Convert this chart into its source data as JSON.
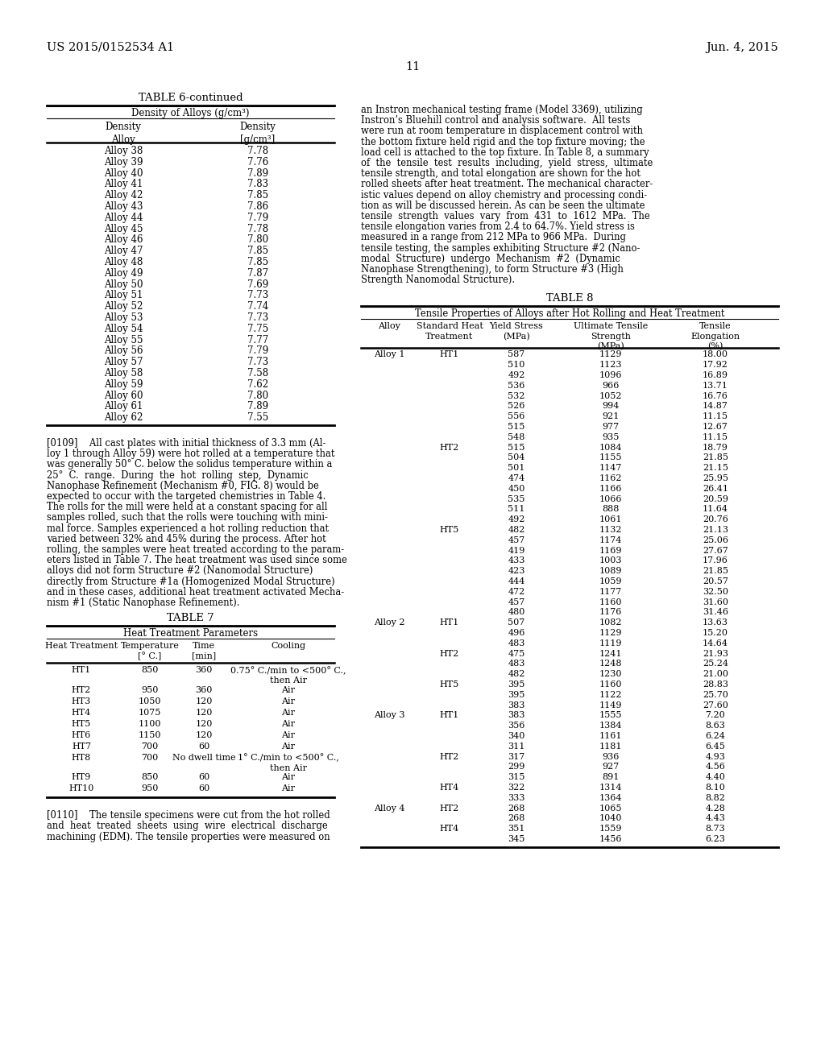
{
  "bg_color": "#ffffff",
  "header_left": "US 2015/0152534 A1",
  "header_right": "Jun. 4, 2015",
  "page_number": "11",
  "table6_title": "TABLE 6-continued",
  "table6_subtitle": "Density of Alloys (g/cm³)",
  "table6_data": [
    [
      "Alloy 38",
      "7.78"
    ],
    [
      "Alloy 39",
      "7.76"
    ],
    [
      "Alloy 40",
      "7.89"
    ],
    [
      "Alloy 41",
      "7.83"
    ],
    [
      "Alloy 42",
      "7.85"
    ],
    [
      "Alloy 43",
      "7.86"
    ],
    [
      "Alloy 44",
      "7.79"
    ],
    [
      "Alloy 45",
      "7.78"
    ],
    [
      "Alloy 46",
      "7.80"
    ],
    [
      "Alloy 47",
      "7.85"
    ],
    [
      "Alloy 48",
      "7.85"
    ],
    [
      "Alloy 49",
      "7.87"
    ],
    [
      "Alloy 50",
      "7.69"
    ],
    [
      "Alloy 51",
      "7.73"
    ],
    [
      "Alloy 52",
      "7.74"
    ],
    [
      "Alloy 53",
      "7.73"
    ],
    [
      "Alloy 54",
      "7.75"
    ],
    [
      "Alloy 55",
      "7.77"
    ],
    [
      "Alloy 56",
      "7.79"
    ],
    [
      "Alloy 57",
      "7.73"
    ],
    [
      "Alloy 58",
      "7.58"
    ],
    [
      "Alloy 59",
      "7.62"
    ],
    [
      "Alloy 60",
      "7.80"
    ],
    [
      "Alloy 61",
      "7.89"
    ],
    [
      "Alloy 62",
      "7.55"
    ]
  ],
  "para109_lines": [
    "[0109]    All cast plates with initial thickness of 3.3 mm (Al-",
    "loy 1 through Alloy 59) were hot rolled at a temperature that",
    "was generally 50° C. below the solidus temperature within a",
    "25°  C.  range.  During  the  hot  rolling  step,  Dynamic",
    "Nanophase Refinement (Mechanism #0, FIG. 8) would be",
    "expected to occur with the targeted chemistries in Table 4.",
    "The rolls for the mill were held at a constant spacing for all",
    "samples rolled, such that the rolls were touching with mini-",
    "mal force. Samples experienced a hot rolling reduction that",
    "varied between 32% and 45% during the process. After hot",
    "rolling, the samples were heat treated according to the param-",
    "eters listed in Table 7. The heat treatment was used since some",
    "alloys did not form Structure #2 (Nanomodal Structure)",
    "directly from Structure #1a (Homogenized Modal Structure)",
    "and in these cases, additional heat treatment activated Mecha-",
    "nism #1 (Static Nanophase Refinement)."
  ],
  "table7_title": "TABLE 7",
  "table7_subtitle": "Heat Treatment Parameters",
  "table7_data": [
    [
      "HT1",
      "850",
      "360",
      "0.75° C./min to <500° C.,",
      "then Air"
    ],
    [
      "HT2",
      "950",
      "360",
      "Air",
      ""
    ],
    [
      "HT3",
      "1050",
      "120",
      "Air",
      ""
    ],
    [
      "HT4",
      "1075",
      "120",
      "Air",
      ""
    ],
    [
      "HT5",
      "1100",
      "120",
      "Air",
      ""
    ],
    [
      "HT6",
      "1150",
      "120",
      "Air",
      ""
    ],
    [
      "HT7",
      "700",
      "60",
      "Air",
      ""
    ],
    [
      "HT8",
      "700",
      "No dwell time",
      "1° C./min to <500° C.,",
      "then Air"
    ],
    [
      "HT9",
      "850",
      "60",
      "Air",
      ""
    ],
    [
      "HT10",
      "950",
      "60",
      "Air",
      ""
    ]
  ],
  "para110_lines": [
    "[0110]    The tensile specimens were cut from the hot rolled",
    "and  heat  treated  sheets  using  wire  electrical  discharge",
    "machining (EDM). The tensile properties were measured on"
  ],
  "right_para_lines": [
    "an Instron mechanical testing frame (Model 3369), utilizing",
    "Instron’s Bluehill control and analysis software.  All tests",
    "were run at room temperature in displacement control with",
    "the bottom fixture held rigid and the top fixture moving; the",
    "load cell is attached to the top fixture. In Table 8, a summary",
    "of  the  tensile  test  results  including,  yield  stress,  ultimate",
    "tensile strength, and total elongation are shown for the hot",
    "rolled sheets after heat treatment. The mechanical character-",
    "istic values depend on alloy chemistry and processing condi-",
    "tion as will be discussed herein. As can be seen the ultimate",
    "tensile  strength  values  vary  from  431  to  1612  MPa.  The",
    "tensile elongation varies from 2.4 to 64.7%. Yield stress is",
    "measured in a range from 212 MPa to 966 MPa.  During",
    "tensile testing, the samples exhibiting Structure #2 (Nano-",
    "modal  Structure)  undergo  Mechanism  #2  (Dynamic",
    "Nanophase Strengthening), to form Structure #3 (High",
    "Strength Nanomodal Structure)."
  ],
  "table8_title": "TABLE 8",
  "table8_subtitle": "Tensile Properties of Alloys after Hot Rolling and Heat Treatment",
  "table8_data": [
    [
      "Alloy 1",
      "HT1",
      "587",
      "1129",
      "18.00"
    ],
    [
      "",
      "",
      "510",
      "1123",
      "17.92"
    ],
    [
      "",
      "",
      "492",
      "1096",
      "16.89"
    ],
    [
      "",
      "",
      "536",
      "966",
      "13.71"
    ],
    [
      "",
      "",
      "532",
      "1052",
      "16.76"
    ],
    [
      "",
      "",
      "526",
      "994",
      "14.87"
    ],
    [
      "",
      "",
      "556",
      "921",
      "11.15"
    ],
    [
      "",
      "",
      "515",
      "977",
      "12.67"
    ],
    [
      "",
      "",
      "548",
      "935",
      "11.15"
    ],
    [
      "",
      "HT2",
      "515",
      "1084",
      "18.79"
    ],
    [
      "",
      "",
      "504",
      "1155",
      "21.85"
    ],
    [
      "",
      "",
      "501",
      "1147",
      "21.15"
    ],
    [
      "",
      "",
      "474",
      "1162",
      "25.95"
    ],
    [
      "",
      "",
      "450",
      "1166",
      "26.41"
    ],
    [
      "",
      "",
      "535",
      "1066",
      "20.59"
    ],
    [
      "",
      "",
      "511",
      "888",
      "11.64"
    ],
    [
      "",
      "",
      "492",
      "1061",
      "20.76"
    ],
    [
      "",
      "HT5",
      "482",
      "1132",
      "21.13"
    ],
    [
      "",
      "",
      "457",
      "1174",
      "25.06"
    ],
    [
      "",
      "",
      "419",
      "1169",
      "27.67"
    ],
    [
      "",
      "",
      "433",
      "1003",
      "17.96"
    ],
    [
      "",
      "",
      "423",
      "1089",
      "21.85"
    ],
    [
      "",
      "",
      "444",
      "1059",
      "20.57"
    ],
    [
      "",
      "",
      "472",
      "1177",
      "32.50"
    ],
    [
      "",
      "",
      "457",
      "1160",
      "31.60"
    ],
    [
      "",
      "",
      "480",
      "1176",
      "31.46"
    ],
    [
      "Alloy 2",
      "HT1",
      "507",
      "1082",
      "13.63"
    ],
    [
      "",
      "",
      "496",
      "1129",
      "15.20"
    ],
    [
      "",
      "",
      "483",
      "1119",
      "14.64"
    ],
    [
      "",
      "HT2",
      "475",
      "1241",
      "21.93"
    ],
    [
      "",
      "",
      "483",
      "1248",
      "25.24"
    ],
    [
      "",
      "",
      "482",
      "1230",
      "21.00"
    ],
    [
      "",
      "HT5",
      "395",
      "1160",
      "28.83"
    ],
    [
      "",
      "",
      "395",
      "1122",
      "25.70"
    ],
    [
      "",
      "",
      "383",
      "1149",
      "27.60"
    ],
    [
      "Alloy 3",
      "HT1",
      "383",
      "1555",
      "7.20"
    ],
    [
      "",
      "",
      "356",
      "1384",
      "8.63"
    ],
    [
      "",
      "",
      "340",
      "1161",
      "6.24"
    ],
    [
      "",
      "",
      "311",
      "1181",
      "6.45"
    ],
    [
      "",
      "HT2",
      "317",
      "936",
      "4.93"
    ],
    [
      "",
      "",
      "299",
      "927",
      "4.56"
    ],
    [
      "",
      "",
      "315",
      "891",
      "4.40"
    ],
    [
      "",
      "HT4",
      "322",
      "1314",
      "8.10"
    ],
    [
      "",
      "",
      "333",
      "1364",
      "8.82"
    ],
    [
      "Alloy 4",
      "HT2",
      "268",
      "1065",
      "4.28"
    ],
    [
      "",
      "",
      "268",
      "1040",
      "4.43"
    ],
    [
      "",
      "HT4",
      "351",
      "1559",
      "8.73"
    ],
    [
      "",
      "",
      "345",
      "1456",
      "6.23"
    ]
  ]
}
